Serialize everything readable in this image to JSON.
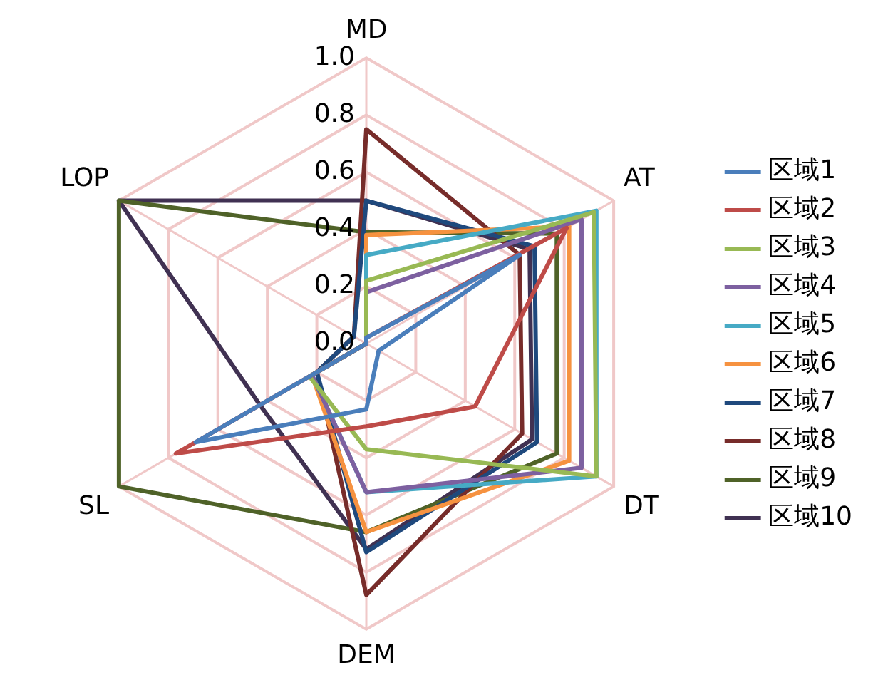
{
  "chart_data": {
    "type": "radar",
    "categories": [
      "MD",
      "AT",
      "DT",
      "DEM",
      "SL",
      "LOP"
    ],
    "ylim": [
      0,
      1
    ],
    "yticks": [
      {
        "value": 0,
        "label": "0.0"
      },
      {
        "value": 0.2,
        "label": "0.2"
      },
      {
        "value": 0.4,
        "label": "0.4"
      },
      {
        "value": 0.6,
        "label": "0.6"
      },
      {
        "value": 0.8,
        "label": "0.8"
      },
      {
        "value": 1,
        "label": "1.0"
      }
    ],
    "grid": true,
    "legend": "right",
    "marker": "none",
    "series": [
      {
        "name": "区域1",
        "color": "#4a7ebb",
        "values": [
          0.02,
          0.62,
          0.05,
          0.23,
          0.69,
          0
        ]
      },
      {
        "name": "区域2",
        "color": "#be4b48",
        "values": [
          0.02,
          0.81,
          0.44,
          0.29,
          0.77,
          0
        ]
      },
      {
        "name": "区域3",
        "color": "#98b954",
        "values": [
          0.22,
          0.92,
          0.93,
          0.37,
          0.23,
          0
        ]
      },
      {
        "name": "区域4",
        "color": "#7d60a0",
        "values": [
          0.18,
          0.87,
          0.87,
          0.52,
          0.22,
          0
        ]
      },
      {
        "name": "区域5",
        "color": "#46aac5",
        "values": [
          0.31,
          0.93,
          0.93,
          0.52,
          0.22,
          0
        ]
      },
      {
        "name": "区域6",
        "color": "#f69240",
        "values": [
          0.38,
          0.82,
          0.82,
          0.66,
          0.22,
          0
        ]
      },
      {
        "name": "区域7",
        "color": "#1f497d",
        "values": [
          0.5,
          0.68,
          0.69,
          0.73,
          0.2,
          0.05
        ]
      },
      {
        "name": "区域8",
        "color": "#772c2a",
        "values": [
          0.75,
          0.62,
          0.63,
          0.88,
          0.2,
          0.05
        ]
      },
      {
        "name": "区域9",
        "color": "#4f6228",
        "values": [
          0.39,
          0.77,
          0.77,
          0.66,
          1,
          1
        ]
      },
      {
        "name": "区域10",
        "color": "#403152",
        "values": [
          0.5,
          0.66,
          0.67,
          0.72,
          0.43,
          1
        ]
      }
    ]
  }
}
